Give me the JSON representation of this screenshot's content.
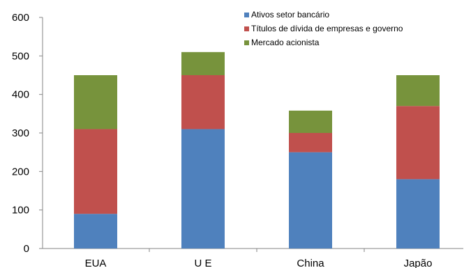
{
  "chart_data": {
    "type": "bar",
    "stacked": true,
    "categories": [
      "EUA",
      "U E",
      "China",
      "Japão"
    ],
    "series": [
      {
        "name": "Ativos setor bancário",
        "values": [
          90,
          310,
          250,
          180
        ],
        "color": "#4f81bd"
      },
      {
        "name": "Títulos de dívida de empresas e governo",
        "values": [
          220,
          140,
          50,
          190
        ],
        "color": "#c0504d"
      },
      {
        "name": "Mercado acionista",
        "values": [
          140,
          60,
          58,
          80
        ],
        "color": "#77933c"
      }
    ],
    "ylim": [
      0,
      600
    ],
    "yticks": [
      0,
      100,
      200,
      300,
      400,
      500,
      600
    ],
    "grid": false,
    "legend_position": "top-right",
    "title": "",
    "xlabel": "",
    "ylabel": ""
  }
}
